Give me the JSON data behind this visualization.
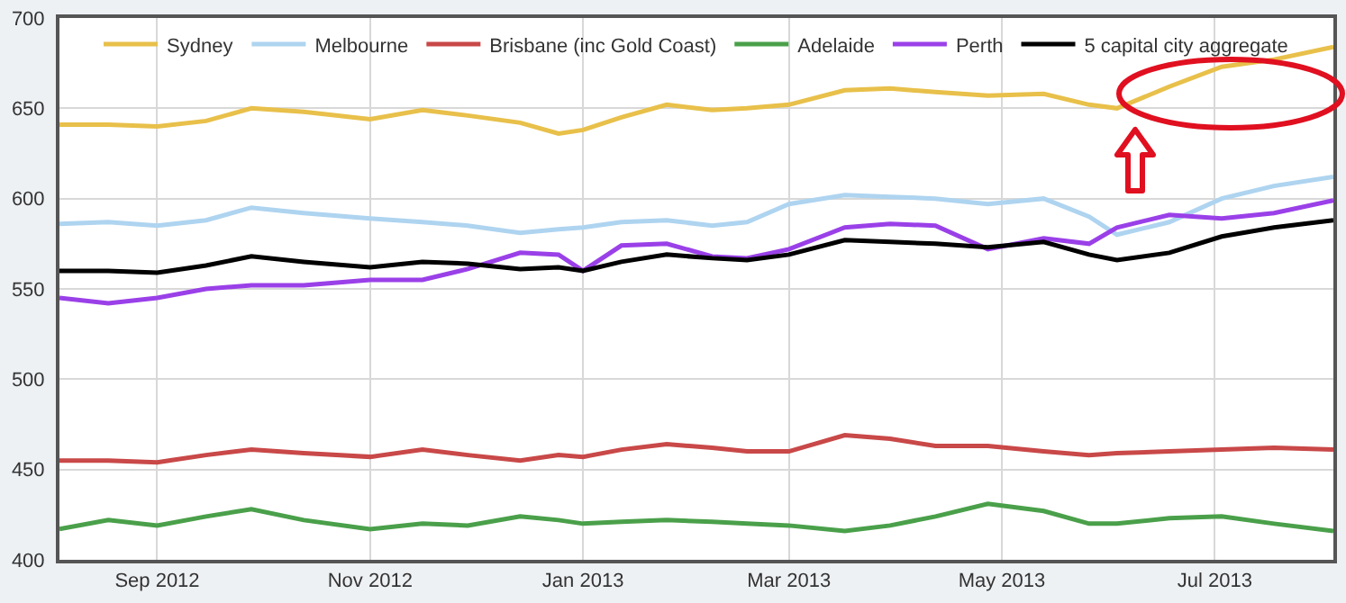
{
  "chart_data": {
    "type": "line",
    "x": [
      "2012-08-04",
      "2012-08-18",
      "2012-09-01",
      "2012-09-15",
      "2012-09-28",
      "2012-10-13",
      "2012-11-01",
      "2012-11-16",
      "2012-11-29",
      "2012-12-14",
      "2012-12-25",
      "2013-01-01",
      "2013-01-12",
      "2013-01-25",
      "2013-02-07",
      "2013-02-17",
      "2013-03-01",
      "2013-03-17",
      "2013-03-30",
      "2013-04-12",
      "2013-04-27",
      "2013-05-13",
      "2013-05-26",
      "2013-06-03",
      "2013-06-18",
      "2013-07-03",
      "2013-07-18",
      "2013-08-04"
    ],
    "series": [
      {
        "name": "Sydney",
        "color": "#e8c04a",
        "values": [
          641,
          641,
          640,
          643,
          650,
          648,
          644,
          649,
          646,
          642,
          636,
          638,
          645,
          652,
          649,
          650,
          652,
          660,
          661,
          659,
          657,
          658,
          652,
          650,
          662,
          673,
          677,
          684
        ]
      },
      {
        "name": "Melbourne",
        "color": "#aed4f0",
        "values": [
          586,
          587,
          585,
          588,
          595,
          592,
          589,
          587,
          585,
          581,
          583,
          584,
          587,
          588,
          585,
          587,
          597,
          602,
          601,
          600,
          597,
          600,
          590,
          580,
          587,
          600,
          607,
          612
        ]
      },
      {
        "name": "Brisbane (inc Gold Coast)",
        "color": "#c94848",
        "values": [
          455,
          455,
          454,
          458,
          461,
          459,
          457,
          461,
          458,
          455,
          458,
          457,
          461,
          464,
          462,
          460,
          460,
          469,
          467,
          463,
          463,
          460,
          458,
          459,
          460,
          461,
          462,
          461
        ]
      },
      {
        "name": "Adelaide",
        "color": "#4aa04a",
        "values": [
          417,
          422,
          419,
          424,
          428,
          422,
          417,
          420,
          419,
          424,
          422,
          420,
          421,
          422,
          421,
          420,
          419,
          416,
          419,
          424,
          431,
          427,
          420,
          420,
          423,
          424,
          420,
          416
        ]
      },
      {
        "name": "Perth",
        "color": "#9a40e8",
        "values": [
          545,
          542,
          545,
          550,
          552,
          552,
          555,
          555,
          561,
          570,
          569,
          560,
          574,
          575,
          568,
          567,
          572,
          584,
          586,
          585,
          572,
          578,
          575,
          584,
          591,
          589,
          592,
          599
        ]
      },
      {
        "name": "5 capital city aggregate",
        "color": "#000000",
        "values": [
          560,
          560,
          559,
          563,
          568,
          565,
          562,
          565,
          564,
          561,
          562,
          560,
          565,
          569,
          567,
          566,
          569,
          577,
          576,
          575,
          573,
          576,
          569,
          566,
          570,
          579,
          584,
          588
        ]
      }
    ],
    "xlim": [
      "2012-08-04",
      "2013-08-04"
    ],
    "xticks": [
      {
        "value": "2012-09-01",
        "label": "Sep 2012"
      },
      {
        "value": "2012-11-01",
        "label": "Nov 2012"
      },
      {
        "value": "2013-01-01",
        "label": "Jan 2013"
      },
      {
        "value": "2013-03-01",
        "label": "Mar 2013"
      },
      {
        "value": "2013-05-01",
        "label": "May 2013"
      },
      {
        "value": "2013-07-01",
        "label": "Jul 2013"
      }
    ],
    "ylim": [
      400,
      700
    ],
    "yticks": [
      400,
      450,
      500,
      550,
      600,
      650,
      700
    ],
    "grid": true,
    "legend": "top",
    "marker": "none",
    "line_style": "solid"
  }
}
